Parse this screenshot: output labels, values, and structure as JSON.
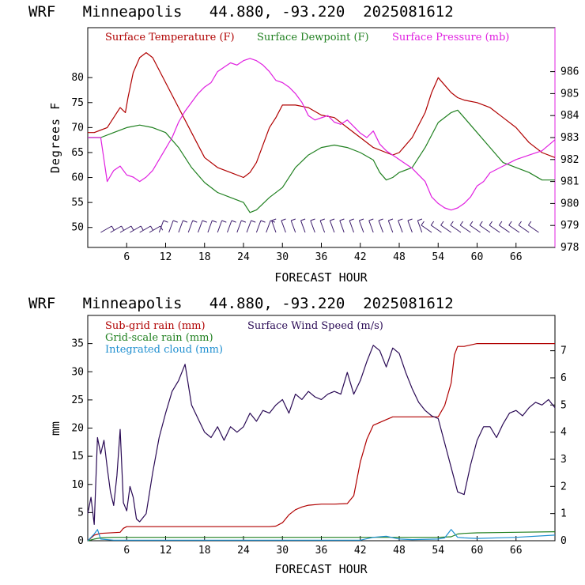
{
  "colors": {
    "temp": "#b00000",
    "dew": "#208020",
    "pres": "#e020e0",
    "wind": "#2a0a55",
    "cloud": "#1f8fd0",
    "barbs": "#3a1a6a"
  },
  "chart_data": [
    {
      "type": "line",
      "title": "WRF   Minneapolis   44.880, -93.220  2025081612",
      "xlabel": "FORECAST HOUR",
      "ylabel": "Degrees F",
      "xlim": [
        0,
        72
      ],
      "ylim": [
        46,
        90
      ],
      "y2lim": [
        978,
        988
      ],
      "xticks": [
        6,
        12,
        18,
        24,
        30,
        36,
        42,
        48,
        54,
        60,
        66
      ],
      "xtick_labels": [
        "6",
        "12",
        "18",
        "24",
        "30",
        "36",
        "42",
        "48",
        "54",
        "60",
        "66"
      ],
      "yticks": [
        50,
        55,
        60,
        65,
        70,
        75,
        80
      ],
      "ytick_labels": [
        "50",
        "55",
        "60",
        "65",
        "70",
        "75",
        "80"
      ],
      "y2ticks": [
        978,
        979,
        980,
        981,
        982,
        983,
        984,
        985,
        986
      ],
      "y2tick_labels": [
        "978",
        "979",
        "980",
        "981",
        "982",
        "983",
        "984",
        "985",
        "986"
      ],
      "series": [
        {
          "name": "Surface Temperature (F)",
          "color": "#b00000",
          "axis": "left",
          "x": [
            0,
            1,
            3,
            5,
            5.8,
            6.2,
            7,
            8,
            9,
            10,
            12,
            14,
            16,
            18,
            20,
            22,
            24,
            25,
            26,
            28,
            29,
            30,
            32,
            34,
            36,
            38,
            40,
            42,
            44,
            46,
            47,
            48,
            50,
            52,
            53,
            54,
            55,
            56,
            57,
            58,
            60,
            62,
            64,
            66,
            68,
            70,
            72
          ],
          "y": [
            69,
            69,
            70,
            74,
            73,
            76,
            81,
            84,
            85,
            84,
            79,
            74,
            69,
            64,
            62,
            61,
            60,
            61,
            63,
            70,
            72,
            74.5,
            74.5,
            74,
            72.5,
            72,
            70,
            68,
            66,
            65,
            64.5,
            65,
            68,
            73,
            77,
            80,
            78.5,
            77,
            76,
            75.5,
            75,
            74,
            72,
            70,
            67,
            65,
            64
          ]
        },
        {
          "name": "Surface Dewpoint (F)",
          "color": "#208020",
          "axis": "left",
          "x": [
            0,
            2,
            4,
            6,
            8,
            10,
            12,
            14,
            16,
            18,
            20,
            22,
            24,
            25,
            26,
            28,
            30,
            32,
            34,
            36,
            38,
            40,
            42,
            44,
            45,
            46,
            47,
            48,
            50,
            52,
            54,
            56,
            57,
            58,
            60,
            62,
            64,
            66,
            68,
            70,
            72
          ],
          "y": [
            68,
            68,
            69,
            70,
            70.5,
            70,
            69,
            66,
            62,
            59,
            57,
            56,
            55,
            53,
            53.5,
            56,
            58,
            62,
            64.5,
            66,
            66.5,
            66,
            65,
            63.5,
            61,
            59.5,
            60,
            61,
            62,
            66,
            71,
            73,
            73.5,
            72,
            69,
            66,
            63,
            62,
            61,
            59.5,
            59.5
          ]
        },
        {
          "name": "Surface Pressure (mb)",
          "color": "#e020e0",
          "axis": "right",
          "x": [
            0,
            1,
            2,
            3,
            4,
            5,
            6,
            7,
            8,
            9,
            10,
            12,
            13,
            14,
            15,
            16,
            17,
            18,
            19,
            20,
            21,
            22,
            23,
            24,
            25,
            26,
            27,
            28,
            29,
            30,
            31,
            32,
            33,
            34,
            35,
            36,
            37,
            38,
            39,
            40,
            41,
            42,
            43,
            44,
            45,
            46,
            47,
            48,
            49,
            50,
            51,
            52,
            53,
            54,
            55,
            56,
            57,
            58,
            59,
            60,
            61,
            62,
            64,
            66,
            68,
            70,
            72
          ],
          "y": [
            983,
            983,
            983,
            981,
            981.5,
            981.7,
            981.3,
            981.2,
            981,
            981.2,
            981.5,
            982.5,
            983,
            983.7,
            984.2,
            984.6,
            985,
            985.3,
            985.5,
            986,
            986.2,
            986.4,
            986.3,
            986.5,
            986.6,
            986.5,
            986.3,
            986,
            985.6,
            985.5,
            985.3,
            985,
            984.6,
            984,
            983.8,
            983.9,
            984,
            983.7,
            983.6,
            983.8,
            983.5,
            983.2,
            983,
            983.3,
            982.7,
            982.4,
            982.2,
            982,
            981.8,
            981.6,
            981.3,
            981,
            980.3,
            980,
            979.8,
            979.7,
            979.8,
            980,
            980.3,
            980.8,
            981,
            981.4,
            981.7,
            982,
            982.2,
            982.4,
            982.9
          ]
        }
      ],
      "wind_barbs_at_y": 49
    },
    {
      "type": "line",
      "title": "WRF   Minneapolis   44.880, -93.220  2025081612",
      "xlabel": "FORECAST HOUR",
      "ylabel": "mm",
      "xlim": [
        0,
        72
      ],
      "ylim": [
        0,
        40
      ],
      "y2lim": [
        0,
        8.3
      ],
      "xticks": [
        6,
        12,
        18,
        24,
        30,
        36,
        42,
        48,
        54,
        60,
        66
      ],
      "xtick_labels": [
        "6",
        "12",
        "18",
        "24",
        "30",
        "36",
        "42",
        "48",
        "54",
        "60",
        "66"
      ],
      "yticks": [
        0,
        5,
        10,
        15,
        20,
        25,
        30,
        35
      ],
      "ytick_labels": [
        "0",
        "5",
        "10",
        "15",
        "20",
        "25",
        "30",
        "35"
      ],
      "y2ticks": [
        0,
        1,
        2,
        3,
        4,
        5,
        6,
        7
      ],
      "y2tick_labels": [
        "0",
        "1",
        "2",
        "3",
        "4",
        "5",
        "6",
        "7"
      ],
      "series": [
        {
          "name": "Sub-grid rain (mm)",
          "color": "#b00000",
          "axis": "left",
          "x": [
            0,
            1,
            2,
            5,
            5.5,
            6,
            12,
            18,
            24,
            28,
            29,
            30,
            31,
            32,
            33,
            34,
            36,
            38,
            40,
            41,
            42,
            43,
            44,
            46,
            47,
            48,
            50,
            52,
            54,
            55,
            56,
            56.5,
            57,
            58,
            60,
            62,
            64,
            66,
            68,
            70,
            72
          ],
          "y": [
            0,
            1,
            1.3,
            1.5,
            2.2,
            2.5,
            2.5,
            2.5,
            2.5,
            2.5,
            2.6,
            3.2,
            4.6,
            5.5,
            6,
            6.3,
            6.5,
            6.5,
            6.6,
            8,
            14,
            18,
            20.5,
            21.5,
            22,
            22,
            22,
            22,
            22,
            24,
            28,
            33,
            34.5,
            34.5,
            35,
            35,
            35,
            35,
            35,
            35,
            35
          ]
        },
        {
          "name": "Grid-scale rain (mm)",
          "color": "#208020",
          "axis": "left",
          "x": [
            0,
            1,
            2,
            4,
            6,
            12,
            24,
            36,
            42,
            48,
            54,
            56,
            57,
            58,
            60,
            66,
            72
          ],
          "y": [
            0,
            0.3,
            0.5,
            0.6,
            0.6,
            0.6,
            0.6,
            0.6,
            0.6,
            0.6,
            0.6,
            0.7,
            1.2,
            1.3,
            1.4,
            1.5,
            1.6
          ]
        },
        {
          "name": "Integrated cloud (mm)",
          "color": "#1f8fd0",
          "axis": "left",
          "x": [
            0,
            1,
            1.5,
            2,
            3,
            4,
            6,
            12,
            24,
            36,
            42,
            44,
            46,
            48,
            50,
            54,
            55,
            56,
            56.5,
            57,
            58,
            60,
            66,
            72
          ],
          "y": [
            0,
            1.2,
            2,
            0.3,
            0.2,
            0.1,
            0.1,
            0.1,
            0.1,
            0.1,
            0.1,
            0.6,
            0.8,
            0.3,
            0.2,
            0.3,
            0.5,
            2,
            1.3,
            0.6,
            0.5,
            0.4,
            0.6,
            1
          ]
        },
        {
          "name": "Surface Wind Speed (m/s)",
          "color": "#2a0a55",
          "axis": "right",
          "x": [
            0,
            0.5,
            1,
            1.5,
            2,
            2.5,
            3,
            3.5,
            4,
            4.5,
            5,
            5.5,
            6,
            6.5,
            7,
            7.5,
            8,
            9,
            10,
            11,
            12,
            13,
            14,
            15,
            16,
            17,
            18,
            19,
            20,
            21,
            22,
            23,
            24,
            25,
            26,
            27,
            28,
            29,
            30,
            31,
            32,
            33,
            34,
            35,
            36,
            37,
            38,
            39,
            40,
            41,
            42,
            43,
            44,
            45,
            46,
            47,
            48,
            49,
            50,
            51,
            52,
            53,
            54,
            55,
            56,
            57,
            58,
            59,
            60,
            61,
            62,
            63,
            64,
            65,
            66,
            67,
            68,
            69,
            70,
            71,
            72
          ],
          "y": [
            1,
            1.6,
            0.6,
            3.8,
            3.2,
            3.7,
            2.7,
            1.8,
            1.3,
            2.4,
            4.1,
            1.4,
            1.1,
            2,
            1.6,
            0.8,
            0.7,
            1,
            2.5,
            3.8,
            4.7,
            5.5,
            5.9,
            6.5,
            5,
            4.5,
            4,
            3.8,
            4.2,
            3.7,
            4.2,
            4,
            4.2,
            4.7,
            4.4,
            4.8,
            4.7,
            5,
            5.2,
            4.7,
            5.4,
            5.2,
            5.5,
            5.3,
            5.2,
            5.4,
            5.5,
            5.4,
            6.2,
            5.4,
            5.9,
            6.6,
            7.2,
            7,
            6.4,
            7.1,
            6.9,
            6.2,
            5.6,
            5.1,
            4.8,
            4.6,
            4.5,
            3.6,
            2.7,
            1.8,
            1.7,
            2.8,
            3.7,
            4.2,
            4.2,
            3.8,
            4.3,
            4.7,
            4.8,
            4.6,
            4.9,
            5.1,
            5,
            5.2,
            4.9
          ]
        }
      ]
    }
  ]
}
